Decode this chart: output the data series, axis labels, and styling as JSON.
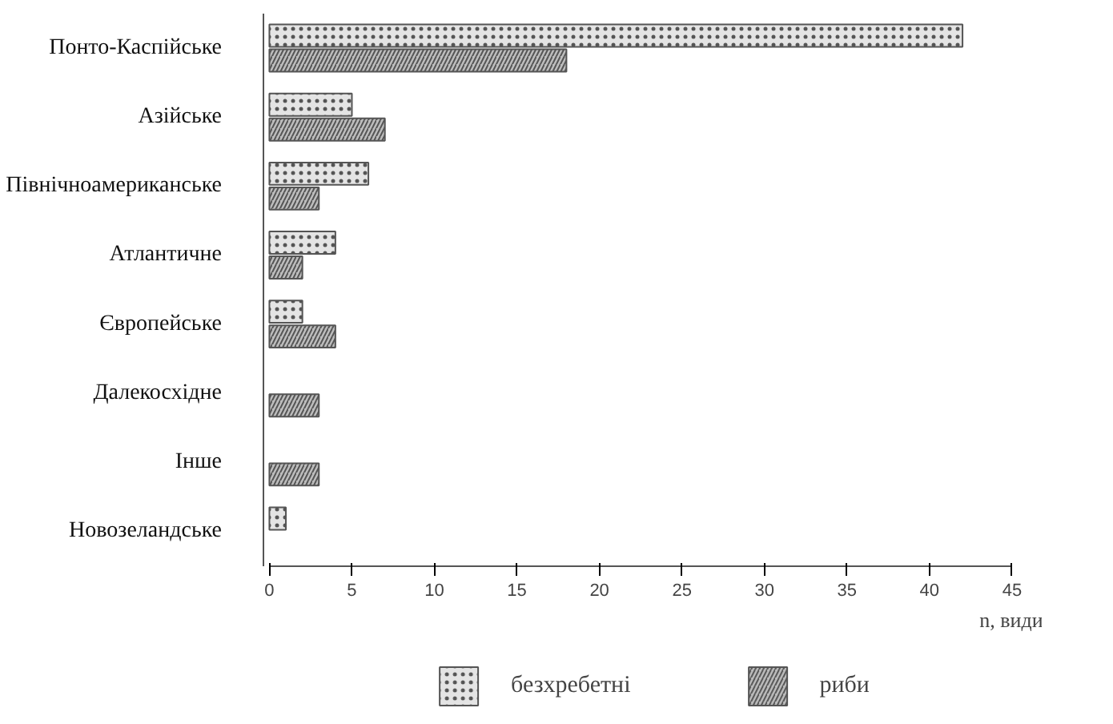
{
  "chart_data": {
    "type": "bar",
    "orientation": "horizontal",
    "xlabel": "n, види",
    "categories": [
      "Понто-Каспійське",
      "Азійське",
      "Північноамериканське",
      "Атлантичне",
      "Європейське",
      "Далекосхідне",
      "Інше",
      "Новозеландське"
    ],
    "series": [
      {
        "name": "безхребетні",
        "color": "#e4e4e4",
        "values": [
          42,
          5,
          6,
          4,
          2,
          null,
          null,
          1
        ]
      },
      {
        "name": "риби",
        "color": "#bdbdbd",
        "values": [
          18,
          7,
          3,
          2,
          4,
          3,
          3,
          null
        ]
      }
    ],
    "xlim": [
      0,
      45
    ],
    "xticks": [
      0,
      5,
      10,
      15,
      20,
      25,
      30,
      35,
      40,
      45
    ],
    "grid": false,
    "legend": "bottom"
  }
}
